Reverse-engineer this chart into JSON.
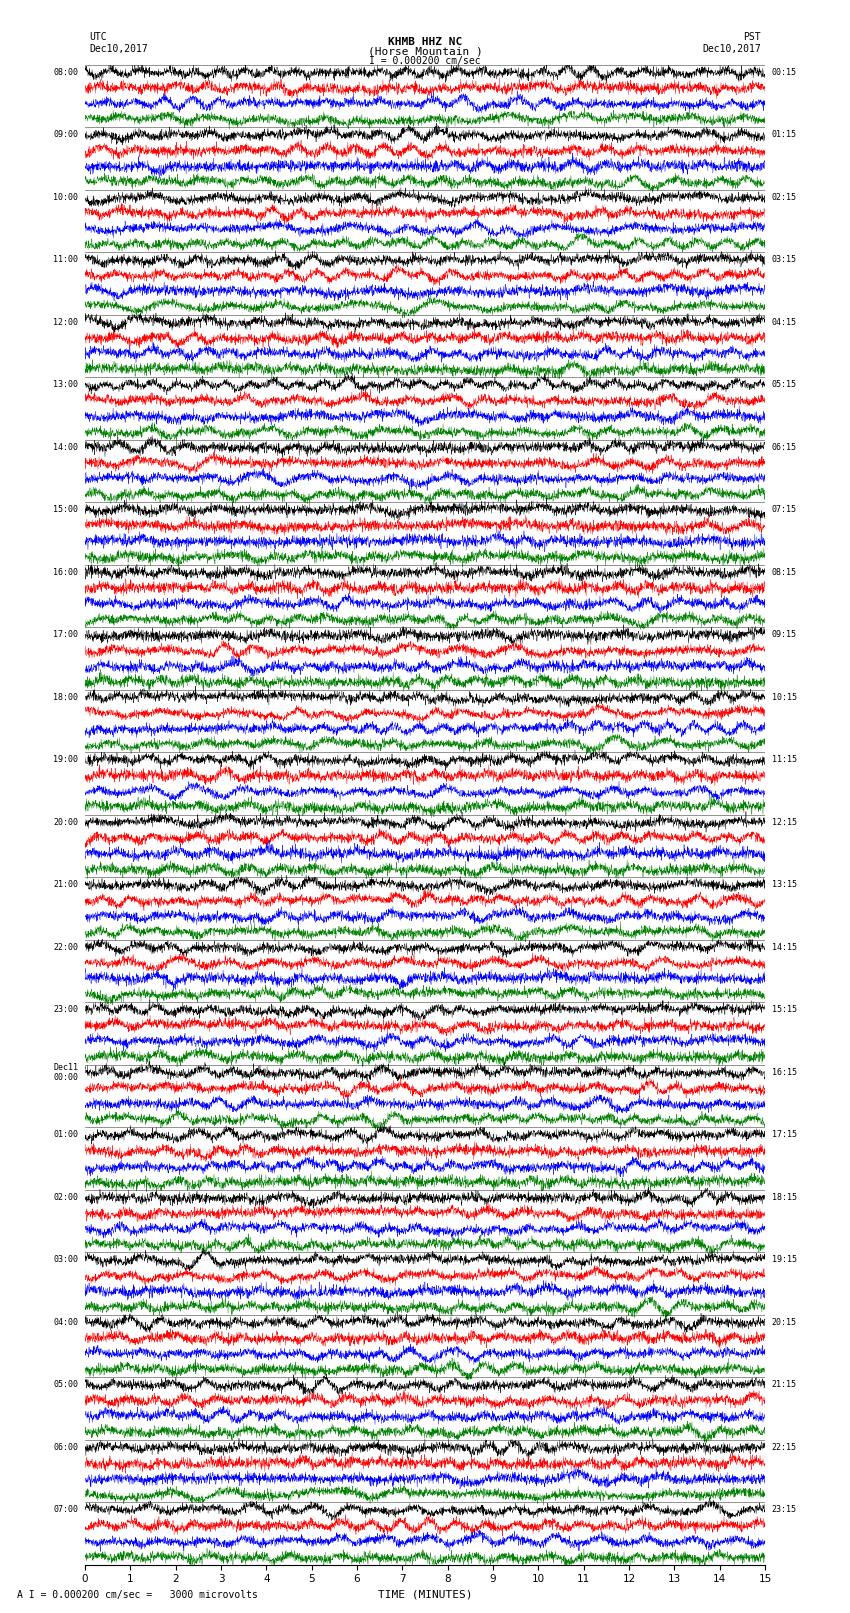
{
  "title_line1": "KHMB HHZ NC",
  "title_line2": "(Horse Mountain )",
  "title_line3": "I = 0.000200 cm/sec",
  "label_utc": "UTC",
  "label_pst": "PST",
  "date_left": "Dec10,2017",
  "date_right": "Dec10,2017",
  "xlabel": "TIME (MINUTES)",
  "footnote": "A I = 0.000200 cm/sec =   3000 microvolts",
  "left_times": [
    "08:00",
    "09:00",
    "10:00",
    "11:00",
    "12:00",
    "13:00",
    "14:00",
    "15:00",
    "16:00",
    "17:00",
    "18:00",
    "19:00",
    "20:00",
    "21:00",
    "22:00",
    "23:00",
    "Dec11\n00:00",
    "01:00",
    "02:00",
    "03:00",
    "04:00",
    "05:00",
    "06:00",
    "07:00"
  ],
  "right_times": [
    "00:15",
    "01:15",
    "02:15",
    "03:15",
    "04:15",
    "05:15",
    "06:15",
    "07:15",
    "08:15",
    "09:15",
    "10:15",
    "11:15",
    "12:15",
    "13:15",
    "14:15",
    "15:15",
    "16:15",
    "17:15",
    "18:15",
    "19:15",
    "20:15",
    "21:15",
    "22:15",
    "23:15"
  ],
  "num_rows": 24,
  "traces_per_row": 4,
  "trace_colors": [
    "black",
    "red",
    "blue",
    "green"
  ],
  "xlim": [
    0,
    15
  ],
  "xticks": [
    0,
    1,
    2,
    3,
    4,
    5,
    6,
    7,
    8,
    9,
    10,
    11,
    12,
    13,
    14,
    15
  ],
  "bg_color": "white",
  "noise_seed": 42
}
